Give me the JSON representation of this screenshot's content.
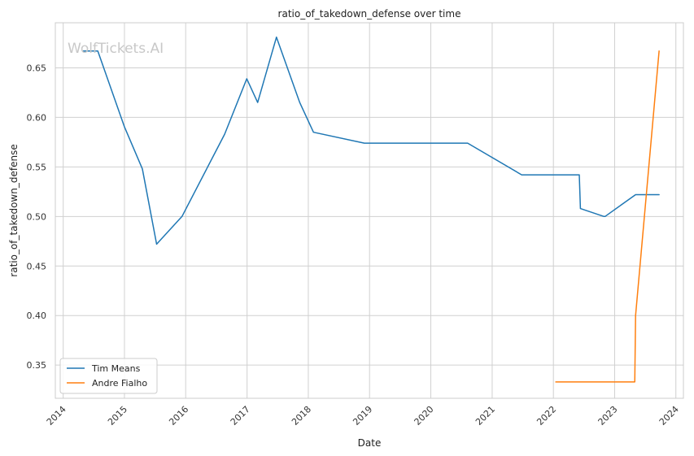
{
  "chart_data": {
    "type": "line",
    "title": "ratio_of_takedown_defense over time",
    "xlabel": "Date",
    "ylabel": "ratio_of_takedown_defense",
    "watermark": "WolfTickets.AI",
    "x_ticks": [
      "2014",
      "2015",
      "2016",
      "2017",
      "2018",
      "2019",
      "2020",
      "2021",
      "2022",
      "2023",
      "2024"
    ],
    "y_ticks": [
      "0.35",
      "0.40",
      "0.45",
      "0.50",
      "0.55",
      "0.60",
      "0.65"
    ],
    "xlim": [
      "2013-11-15",
      "2024-02-15"
    ],
    "ylim": [
      0.3165,
      0.6955
    ],
    "grid": true,
    "legend_position": "bottom-left",
    "series": [
      {
        "name": "Tim Means",
        "color": "#1f77b4",
        "points": [
          {
            "x": "2014-05-01",
            "y": 0.667
          },
          {
            "x": "2014-07-26",
            "y": 0.667
          },
          {
            "x": "2014-12-31",
            "y": 0.591
          },
          {
            "x": "2015-04-18",
            "y": 0.548
          },
          {
            "x": "2015-07-12",
            "y": 0.472
          },
          {
            "x": "2015-12-10",
            "y": 0.5
          },
          {
            "x": "2016-08-20",
            "y": 0.583
          },
          {
            "x": "2016-12-30",
            "y": 0.639
          },
          {
            "x": "2017-03-05",
            "y": 0.615
          },
          {
            "x": "2017-06-25",
            "y": 0.681
          },
          {
            "x": "2017-11-11",
            "y": 0.615
          },
          {
            "x": "2018-02-01",
            "y": 0.585
          },
          {
            "x": "2018-12-01",
            "y": 0.574
          },
          {
            "x": "2020-08-08",
            "y": 0.574
          },
          {
            "x": "2021-06-26",
            "y": 0.542
          },
          {
            "x": "2022-06-04",
            "y": 0.542
          },
          {
            "x": "2022-06-11",
            "y": 0.508
          },
          {
            "x": "2022-10-29",
            "y": 0.5
          },
          {
            "x": "2022-11-05",
            "y": 0.5
          },
          {
            "x": "2023-05-06",
            "y": 0.522
          },
          {
            "x": "2023-09-23",
            "y": 0.522
          }
        ]
      },
      {
        "name": "Andre Fialho",
        "color": "#ff7f0e",
        "points": [
          {
            "x": "2022-01-15",
            "y": 0.333
          },
          {
            "x": "2023-05-01",
            "y": 0.333
          },
          {
            "x": "2023-05-06",
            "y": 0.4
          },
          {
            "x": "2023-09-23",
            "y": 0.667
          }
        ]
      }
    ]
  }
}
